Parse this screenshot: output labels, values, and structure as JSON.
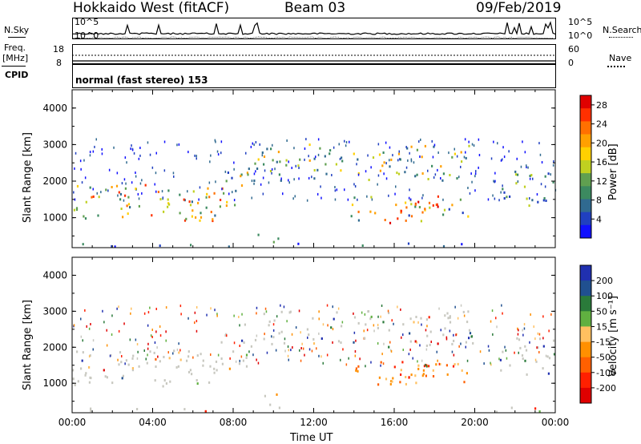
{
  "header": {
    "station": "Hokkaido West (fitACF)",
    "beam": "Beam 03",
    "date": "09/Feb/2019"
  },
  "strip": {
    "nsky_label": "N.Sky",
    "nsearch_label": "N.Search",
    "noise_top_tick": "10^5",
    "noise_bottom_tick": "10^0",
    "freq_label": "Freq.",
    "freq_unit": "[MHz]",
    "freq_top_tick": "18",
    "freq_bottom_tick": "8",
    "nave_label": "Nave",
    "nave_top_tick": "60",
    "nave_bottom_tick": "0",
    "cpid_label": "CPID",
    "cpid_text": "normal (fast stereo) 153"
  },
  "colors": {
    "power_scale": [
      "#1010ff",
      "#2040c0",
      "#306a90",
      "#3c8a60",
      "#60a050",
      "#c0d020",
      "#ffd000",
      "#ffa000",
      "#ff7000",
      "#ff3000",
      "#e00000"
    ],
    "velocity_scale": [
      "#2030b0",
      "#205090",
      "#2a7a3a",
      "#60b040",
      "#c8c8c0",
      "#ffc060",
      "#ff9000",
      "#ff6000",
      "#ff2000",
      "#e00000"
    ]
  },
  "chart_data": [
    {
      "type": "heatmap",
      "panel": "power",
      "ylabel": "Slant Range [km]",
      "y_ticks": [
        "4000",
        "3000",
        "2000",
        "1000"
      ],
      "ylim": [
        180,
        4500
      ],
      "x_ticks": [
        "00:00",
        "04:00",
        "08:00",
        "12:00",
        "16:00",
        "20:00",
        "00:00"
      ],
      "xlim_hours": [
        0,
        24
      ],
      "colorbar": {
        "label": "Power [dB]",
        "ticks": [
          "28",
          "24",
          "20",
          "16",
          "12",
          "8",
          "4"
        ],
        "range": [
          0,
          30
        ]
      }
    },
    {
      "type": "heatmap",
      "panel": "velocity",
      "ylabel": "Slant Range [km]",
      "y_ticks": [
        "4000",
        "3000",
        "2000",
        "1000"
      ],
      "ylim": [
        180,
        4500
      ],
      "x_ticks": [
        "00:00",
        "04:00",
        "08:00",
        "12:00",
        "16:00",
        "20:00",
        "00:00"
      ],
      "xlabel": "Time UT",
      "xlim_hours": [
        0,
        24
      ],
      "colorbar": {
        "label": "Velocity [m s⁻¹]",
        "ticks": [
          "200",
          "100",
          "50",
          "15",
          "-15",
          "-50",
          "-100",
          "-200"
        ],
        "range": [
          -250,
          250
        ]
      }
    }
  ]
}
